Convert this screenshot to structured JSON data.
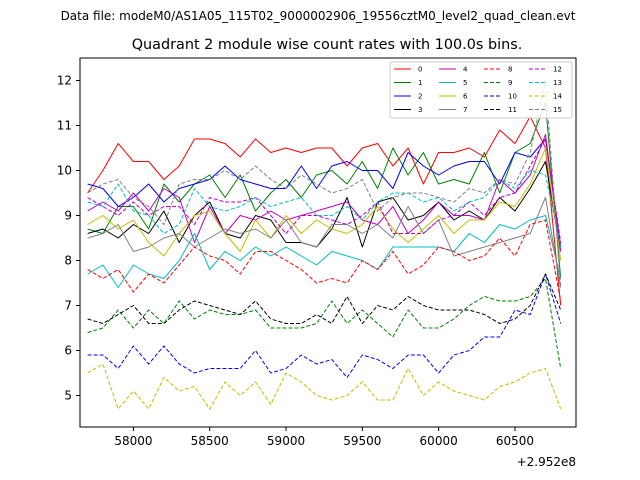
{
  "figure": {
    "suptitle": "Data file: modeM0/AS1A05_115T02_9000002906_19556cztM0_level2_quad_clean.evt",
    "title": "Quadrant 2 module wise count rates with 100.0s bins.",
    "offset_label": "+2.952e8"
  },
  "chart_data": {
    "type": "line",
    "title": "Quadrant 2 module wise count rates with 100.0s bins.",
    "xlabel": "",
    "ylabel": "",
    "x_offset": 295200000,
    "xlim": [
      57650,
      60900
    ],
    "ylim": [
      4.3,
      12.5
    ],
    "xticks": [
      58000,
      58500,
      59000,
      59500,
      60000,
      60500
    ],
    "xtick_labels": [
      "58000",
      "58500",
      "59000",
      "59500",
      "60000",
      "60500"
    ],
    "yticks": [
      5,
      6,
      7,
      8,
      9,
      10,
      11,
      12
    ],
    "ytick_labels": [
      "5",
      "6",
      "7",
      "8",
      "9",
      "10",
      "11",
      "12"
    ],
    "grid": false,
    "legend_position": "top-right",
    "x": [
      57700,
      57800,
      57900,
      58000,
      58100,
      58200,
      58300,
      58400,
      58500,
      58600,
      58700,
      58800,
      58900,
      59000,
      59100,
      59200,
      59300,
      59400,
      59500,
      59600,
      59700,
      59800,
      59900,
      60000,
      60100,
      60200,
      60300,
      60400,
      60500,
      60600,
      60700,
      60800
    ],
    "series": [
      {
        "name": "0",
        "color": "#ff0000",
        "dash": false,
        "values": [
          9.5,
          10.0,
          10.6,
          10.2,
          10.2,
          9.8,
          10.1,
          10.7,
          10.7,
          10.6,
          10.3,
          10.7,
          10.4,
          10.5,
          10.4,
          10.5,
          10.5,
          10.1,
          10.5,
          10.6,
          10.1,
          10.5,
          9.7,
          10.4,
          10.4,
          10.5,
          10.3,
          10.9,
          10.6,
          11.2,
          10.5,
          7.0
        ]
      },
      {
        "name": "1",
        "color": "#008000",
        "dash": false,
        "values": [
          8.7,
          8.6,
          9.2,
          9.2,
          8.7,
          9.7,
          9.3,
          9.7,
          9.9,
          9.4,
          9.9,
          9.1,
          9.5,
          9.8,
          9.4,
          9.9,
          10.0,
          9.7,
          10.2,
          9.6,
          10.5,
          9.9,
          10.4,
          9.7,
          9.8,
          9.7,
          10.4,
          9.5,
          10.4,
          10.6,
          11.5,
          7.6
        ]
      },
      {
        "name": "2",
        "color": "#0000ff",
        "dash": false,
        "values": [
          9.7,
          9.6,
          9.2,
          9.4,
          9.7,
          9.3,
          9.6,
          9.7,
          9.8,
          10.1,
          9.8,
          9.7,
          9.6,
          9.6,
          10.1,
          9.6,
          10.1,
          10.2,
          10.0,
          10.0,
          9.6,
          10.4,
          10.1,
          9.9,
          10.1,
          10.2,
          10.2,
          9.7,
          10.4,
          10.3,
          10.7,
          8.3
        ]
      },
      {
        "name": "3",
        "color": "#000000",
        "dash": false,
        "values": [
          8.6,
          8.7,
          8.5,
          8.8,
          8.6,
          9.1,
          8.4,
          9.0,
          9.3,
          8.6,
          8.5,
          9.0,
          8.9,
          8.4,
          8.4,
          8.3,
          8.7,
          9.4,
          8.3,
          9.3,
          9.4,
          8.9,
          9.0,
          9.3,
          8.9,
          9.1,
          8.9,
          9.4,
          9.1,
          9.6,
          10.2,
          8.2
        ]
      },
      {
        "name": "4",
        "color": "#bf00bf",
        "dash": false,
        "values": [
          9.1,
          9.3,
          9.1,
          9.5,
          9.1,
          9.6,
          9.4,
          8.4,
          9.2,
          8.6,
          9.0,
          8.9,
          9.1,
          8.9,
          9.0,
          9.1,
          9.2,
          9.3,
          8.9,
          8.8,
          9.2,
          8.6,
          8.9,
          9.3,
          9.0,
          9.0,
          8.9,
          9.8,
          9.5,
          9.9,
          10.8,
          8.2
        ]
      },
      {
        "name": "5",
        "color": "#00bfbf",
        "dash": false,
        "values": [
          7.7,
          7.9,
          7.4,
          7.9,
          7.7,
          7.6,
          8.0,
          8.6,
          7.8,
          8.2,
          8.0,
          8.3,
          8.1,
          8.3,
          8.1,
          7.9,
          8.2,
          8.1,
          8.0,
          7.8,
          8.3,
          8.3,
          8.3,
          8.3,
          8.2,
          8.6,
          8.4,
          8.8,
          8.7,
          8.9,
          9.0,
          7.6
        ]
      },
      {
        "name": "6",
        "color": "#bfbf00",
        "dash": false,
        "values": [
          8.8,
          9.0,
          8.7,
          8.9,
          8.4,
          8.1,
          8.6,
          9.0,
          9.1,
          8.6,
          8.2,
          8.9,
          8.5,
          9.0,
          8.6,
          8.9,
          8.7,
          8.6,
          8.8,
          9.2,
          8.7,
          8.4,
          8.7,
          9.0,
          8.6,
          8.9,
          8.9,
          9.3,
          9.2,
          9.7,
          10.5,
          8.0
        ]
      },
      {
        "name": "7",
        "color": "#808080",
        "dash": false,
        "values": [
          8.5,
          8.6,
          8.8,
          8.2,
          8.3,
          8.5,
          8.6,
          8.3,
          8.5,
          8.7,
          8.6,
          8.7,
          8.5,
          8.9,
          8.4,
          8.3,
          8.8,
          8.8,
          8.6,
          8.8,
          8.5,
          9.2,
          8.6,
          8.9,
          8.1,
          8.2,
          8.3,
          8.4,
          8.5,
          8.6,
          9.4,
          7.4
        ]
      },
      {
        "name": "8",
        "color": "#ff0000",
        "dash": true,
        "values": [
          7.8,
          7.6,
          7.8,
          7.3,
          7.7,
          7.5,
          7.9,
          8.3,
          8.1,
          8.0,
          7.7,
          8.2,
          8.2,
          8.0,
          7.8,
          7.5,
          7.6,
          7.5,
          8.0,
          7.8,
          8.2,
          7.7,
          7.9,
          8.3,
          8.2,
          8.0,
          8.1,
          8.5,
          8.1,
          8.8,
          8.9,
          7.1
        ]
      },
      {
        "name": "9",
        "color": "#008000",
        "dash": true,
        "values": [
          6.4,
          6.5,
          6.9,
          6.5,
          6.9,
          6.6,
          7.1,
          6.7,
          6.9,
          6.8,
          6.8,
          6.9,
          6.5,
          6.5,
          6.5,
          6.6,
          7.1,
          6.6,
          6.9,
          6.6,
          6.3,
          6.9,
          6.5,
          6.5,
          6.7,
          7.0,
          7.2,
          7.1,
          7.1,
          7.2,
          7.6,
          5.6
        ]
      },
      {
        "name": "10",
        "color": "#0000ff",
        "dash": true,
        "values": [
          5.9,
          5.9,
          5.6,
          6.1,
          5.7,
          6.1,
          5.7,
          5.5,
          5.6,
          5.6,
          5.6,
          6.0,
          5.5,
          5.6,
          5.9,
          5.7,
          5.8,
          5.4,
          5.9,
          5.8,
          5.6,
          5.9,
          5.9,
          5.5,
          5.9,
          6.0,
          6.3,
          6.3,
          6.9,
          6.8,
          7.7,
          6.6
        ]
      },
      {
        "name": "11",
        "color": "#000000",
        "dash": true,
        "values": [
          6.7,
          6.6,
          6.8,
          7.0,
          6.6,
          6.6,
          6.9,
          7.1,
          7.0,
          6.9,
          6.8,
          7.1,
          6.7,
          6.6,
          6.6,
          6.8,
          6.6,
          7.2,
          6.6,
          7.0,
          6.9,
          7.2,
          7.0,
          6.9,
          6.9,
          6.9,
          6.8,
          6.6,
          6.7,
          7.0,
          7.7,
          6.9
        ]
      },
      {
        "name": "12",
        "color": "#bf00bf",
        "dash": true,
        "values": [
          9.4,
          9.2,
          9.0,
          9.3,
          9.0,
          9.2,
          9.2,
          8.8,
          9.4,
          9.3,
          9.3,
          9.4,
          9.0,
          8.6,
          9.0,
          9.0,
          8.9,
          8.8,
          9.0,
          9.3,
          8.6,
          8.6,
          8.6,
          8.9,
          9.0,
          9.3,
          9.0,
          9.4,
          9.5,
          10.1,
          10.7,
          8.4
        ]
      },
      {
        "name": "13",
        "color": "#00bfbf",
        "dash": true,
        "values": [
          9.3,
          9.2,
          9.7,
          9.1,
          9.0,
          8.6,
          8.8,
          9.6,
          9.2,
          9.1,
          9.2,
          9.4,
          9.2,
          9.3,
          9.4,
          9.0,
          9.0,
          9.2,
          8.9,
          9.3,
          9.5,
          9.5,
          9.3,
          9.4,
          9.1,
          9.3,
          9.4,
          9.8,
          9.6,
          10.0,
          9.9,
          8.3
        ]
      },
      {
        "name": "14",
        "color": "#bfbf00",
        "dash": true,
        "values": [
          5.5,
          5.7,
          4.7,
          5.1,
          4.7,
          5.4,
          5.1,
          5.2,
          4.7,
          5.3,
          5.0,
          5.3,
          4.8,
          5.5,
          5.3,
          5.0,
          4.9,
          5.0,
          5.3,
          4.9,
          4.9,
          5.6,
          5.0,
          5.3,
          5.1,
          5.0,
          4.9,
          5.2,
          5.3,
          5.5,
          5.6,
          4.7
        ]
      },
      {
        "name": "15",
        "color": "#808080",
        "dash": true,
        "values": [
          9.5,
          9.7,
          9.8,
          9.4,
          9.2,
          8.8,
          9.7,
          9.8,
          9.8,
          10.0,
          9.8,
          10.1,
          9.8,
          9.6,
          9.9,
          9.7,
          9.5,
          9.6,
          9.8,
          9.1,
          9.4,
          9.5,
          9.5,
          9.4,
          9.3,
          9.6,
          9.5,
          9.8,
          9.7,
          10.4,
          12.0,
          7.4
        ]
      }
    ]
  }
}
